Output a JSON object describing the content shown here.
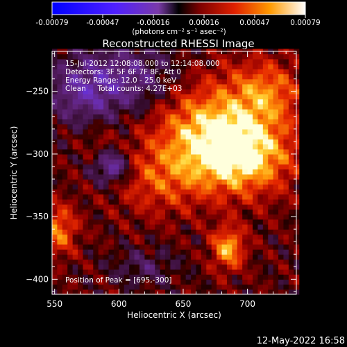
{
  "chart_data": {
    "type": "heatmap",
    "title": "Reconstructed RHESSI Image",
    "xlabel": "Heliocentric X (arcsec)",
    "ylabel": "Heliocentric Y (arcsec)",
    "xlim": [
      548,
      738
    ],
    "ylim": [
      -412,
      -218
    ],
    "xticks": [
      550,
      600,
      650,
      700
    ],
    "yticks": [
      -250,
      -300,
      -350,
      -400
    ],
    "colorbar": {
      "label": "(photons cm⁻² s⁻¹ asec⁻²)",
      "range": [
        -0.00079,
        0.00079
      ],
      "ticks": [
        "-0.00079",
        "-0.00047",
        "-0.00016",
        "0.00016",
        "0.00047",
        "0.00079"
      ]
    },
    "annotations": [
      "15-Jul-2012 12:08:08.000 to 12:14:08.000",
      "Detectors: 3F 5F 6F 7F 8F, Att 0",
      "Energy Range: 12.0 - 25.0 keV",
      "Clean     Total counts: 4.27E+03"
    ],
    "peak_label": "Position of Peak = [695,-300]",
    "peak": {
      "x": 695,
      "y": -300
    },
    "sources": [
      {
        "x": 695,
        "y": -300,
        "sx": 28,
        "sy": 22,
        "amp": 0.0007
      },
      {
        "x": 665,
        "y": -275,
        "sx": 30,
        "sy": 28,
        "amp": 0.00045
      },
      {
        "x": 715,
        "y": -250,
        "sx": 20,
        "sy": 18,
        "amp": 0.0004
      },
      {
        "x": 630,
        "y": -320,
        "sx": 25,
        "sy": 20,
        "amp": 0.0003
      },
      {
        "x": 685,
        "y": -375,
        "sx": 9,
        "sy": 12,
        "amp": 0.00055
      },
      {
        "x": 553,
        "y": -360,
        "sx": 10,
        "sy": 14,
        "amp": 0.00045
      },
      {
        "x": 585,
        "y": -290,
        "sx": 8,
        "sy": 8,
        "amp": 0.00012
      },
      {
        "x": 620,
        "y": -390,
        "sx": 18,
        "sy": 10,
        "amp": -0.0002
      },
      {
        "x": 610,
        "y": -240,
        "sx": 30,
        "sy": 20,
        "amp": -0.00035
      },
      {
        "x": 595,
        "y": -310,
        "sx": 10,
        "sy": 10,
        "amp": -0.0005
      },
      {
        "x": 570,
        "y": -250,
        "sx": 20,
        "sy": 18,
        "amp": -0.0003
      }
    ]
  },
  "footer": {
    "timestamp": "12-May-2022 16:58"
  }
}
